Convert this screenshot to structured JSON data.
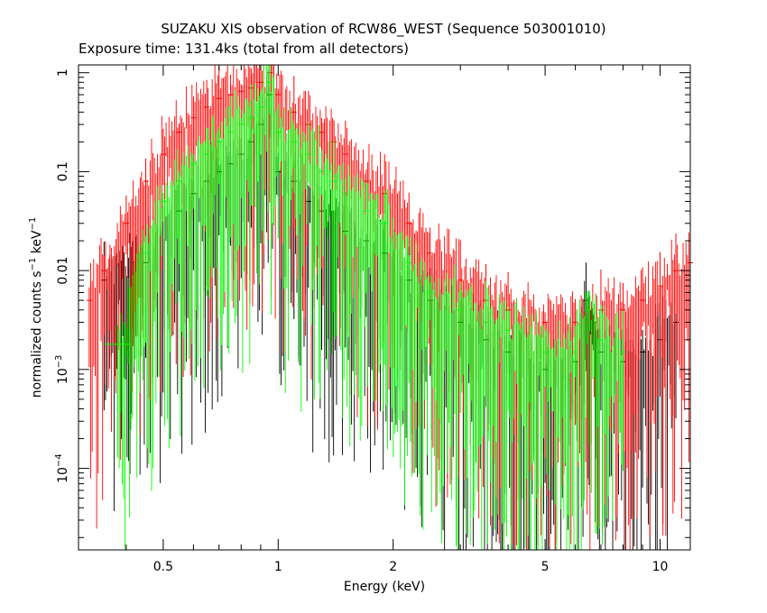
{
  "chart_data": {
    "type": "scatter",
    "title": "SUZAKU XIS observation of RCW86_WEST (Sequence 503001010)",
    "subtitle": "Exposure time: 131.4ks (total from all detectors)",
    "xlabel": "Energy (keV)",
    "ylabel": {
      "prefix": "normalized counts s",
      "exp1": "−1",
      "mid": " keV",
      "exp2": "−1"
    },
    "x_scale": "log",
    "y_scale": "log",
    "xlim": [
      0.3,
      12
    ],
    "ylim": [
      1.5e-05,
      1.2
    ],
    "grid": false,
    "x_ticks": [
      {
        "value": 0.5,
        "label": "0.5"
      },
      {
        "value": 1,
        "label": "1"
      },
      {
        "value": 2,
        "label": "2"
      },
      {
        "value": 5,
        "label": "5"
      },
      {
        "value": 10,
        "label": "10"
      }
    ],
    "y_ticks": [
      {
        "value": 1,
        "label": "1",
        "exp": ""
      },
      {
        "value": 0.1,
        "label": "0.1",
        "exp": ""
      },
      {
        "value": 0.01,
        "label": "0.01",
        "exp": ""
      },
      {
        "value": 0.001,
        "label": "10",
        "exp": "−3"
      },
      {
        "value": 0.0001,
        "label": "10",
        "exp": "−4"
      }
    ],
    "series": [
      {
        "color": "#000000",
        "x": [
          0.35,
          0.45,
          0.55,
          0.6,
          0.65,
          0.7,
          0.75,
          0.8,
          0.85,
          0.9,
          0.95,
          1.0,
          1.1,
          1.2,
          1.3,
          1.5,
          1.7,
          1.9,
          2.2,
          2.5,
          3.0,
          3.5,
          4.0,
          5.0,
          6.0,
          6.4,
          6.7,
          7.0,
          8.0,
          9.0,
          10.0,
          11.0
        ],
        "y": [
          0.008,
          0.012,
          0.04,
          0.06,
          0.08,
          0.1,
          0.12,
          0.15,
          0.2,
          0.3,
          0.6,
          0.1,
          0.08,
          0.05,
          0.04,
          0.025,
          0.02,
          0.015,
          0.008,
          0.005,
          0.003,
          0.002,
          0.0015,
          0.001,
          0.0012,
          0.005,
          0.003,
          0.0015,
          0.0012,
          0.0015,
          0.002,
          0.003
        ]
      },
      {
        "color": "#ff0000",
        "x": [
          0.32,
          0.35,
          0.4,
          0.45,
          0.5,
          0.55,
          0.6,
          0.65,
          0.7,
          0.75,
          0.8,
          0.85,
          0.9,
          0.95,
          1.0,
          1.1,
          1.2,
          1.3,
          1.4,
          1.5,
          1.7,
          1.9,
          2.2,
          2.5,
          3.0,
          3.5,
          4.0,
          5.0,
          6.0,
          6.5,
          7.0,
          8.0,
          9.0,
          10.0,
          11.0,
          12.0
        ],
        "y": [
          0.005,
          0.01,
          0.03,
          0.08,
          0.15,
          0.25,
          0.35,
          0.45,
          0.55,
          0.6,
          0.65,
          0.7,
          0.8,
          1.0,
          0.6,
          0.4,
          0.3,
          0.25,
          0.2,
          0.15,
          0.08,
          0.06,
          0.03,
          0.015,
          0.008,
          0.005,
          0.004,
          0.003,
          0.003,
          0.003,
          0.004,
          0.004,
          0.005,
          0.007,
          0.01,
          0.012
        ]
      },
      {
        "color": "#00ff00",
        "x": [
          0.38,
          0.45,
          0.5,
          0.55,
          0.6,
          0.65,
          0.7,
          0.75,
          0.8,
          0.85,
          0.9,
          0.95,
          1.0,
          1.1,
          1.2,
          1.3,
          1.4,
          1.5,
          1.7,
          1.9,
          2.2,
          2.5,
          3.0,
          3.5,
          4.0,
          5.0,
          6.0,
          6.5,
          7.0,
          8.0
        ],
        "y": [
          0.0018,
          0.015,
          0.05,
          0.08,
          0.12,
          0.15,
          0.2,
          0.25,
          0.3,
          0.35,
          0.45,
          0.8,
          0.25,
          0.2,
          0.15,
          0.1,
          0.08,
          0.06,
          0.04,
          0.03,
          0.012,
          0.006,
          0.004,
          0.003,
          0.0025,
          0.0015,
          0.0015,
          0.004,
          0.002,
          0.0015
        ]
      }
    ]
  }
}
